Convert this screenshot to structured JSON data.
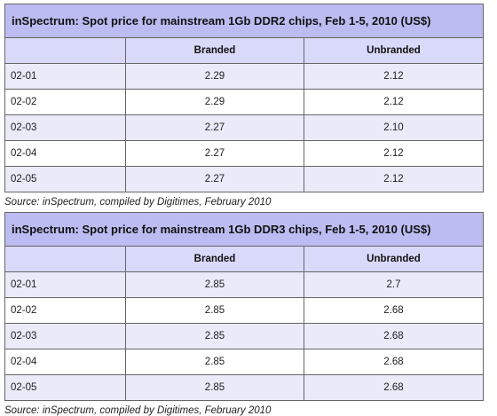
{
  "tables": [
    {
      "title": "inSpectrum: Spot price for mainstream 1Gb DDR2 chips, Feb 1-5, 2010 (US$)",
      "columns": [
        "",
        "Branded",
        "Unbranded"
      ],
      "rows": [
        {
          "date": "02-01",
          "branded": "2.29",
          "unbranded": "2.12"
        },
        {
          "date": "02-02",
          "branded": "2.29",
          "unbranded": "2.12"
        },
        {
          "date": "02-03",
          "branded": "2.27",
          "unbranded": "2.10"
        },
        {
          "date": "02-04",
          "branded": "2.27",
          "unbranded": "2.12"
        },
        {
          "date": "02-05",
          "branded": "2.27",
          "unbranded": "2.12"
        }
      ],
      "source": "Source: inSpectrum, compiled by Digitimes, February 2010"
    },
    {
      "title": "inSpectrum: Spot price for mainstream 1Gb DDR3 chips, Feb 1-5, 2010 (US$)",
      "columns": [
        "",
        "Branded",
        "Unbranded"
      ],
      "rows": [
        {
          "date": "02-01",
          "branded": "2.85",
          "unbranded": "2.7"
        },
        {
          "date": "02-02",
          "branded": "2.85",
          "unbranded": "2.68"
        },
        {
          "date": "02-03",
          "branded": "2.85",
          "unbranded": "2.68"
        },
        {
          "date": "02-04",
          "branded": "2.85",
          "unbranded": "2.68"
        },
        {
          "date": "02-05",
          "branded": "2.85",
          "unbranded": "2.68"
        }
      ],
      "source": "Source: inSpectrum, compiled by Digitimes, February 2010"
    }
  ],
  "colors": {
    "title_bg": "#bcbcf2",
    "header_bg": "#d9d9fa",
    "alt_row_bg": "#eaeaf8",
    "border": "#666666"
  }
}
